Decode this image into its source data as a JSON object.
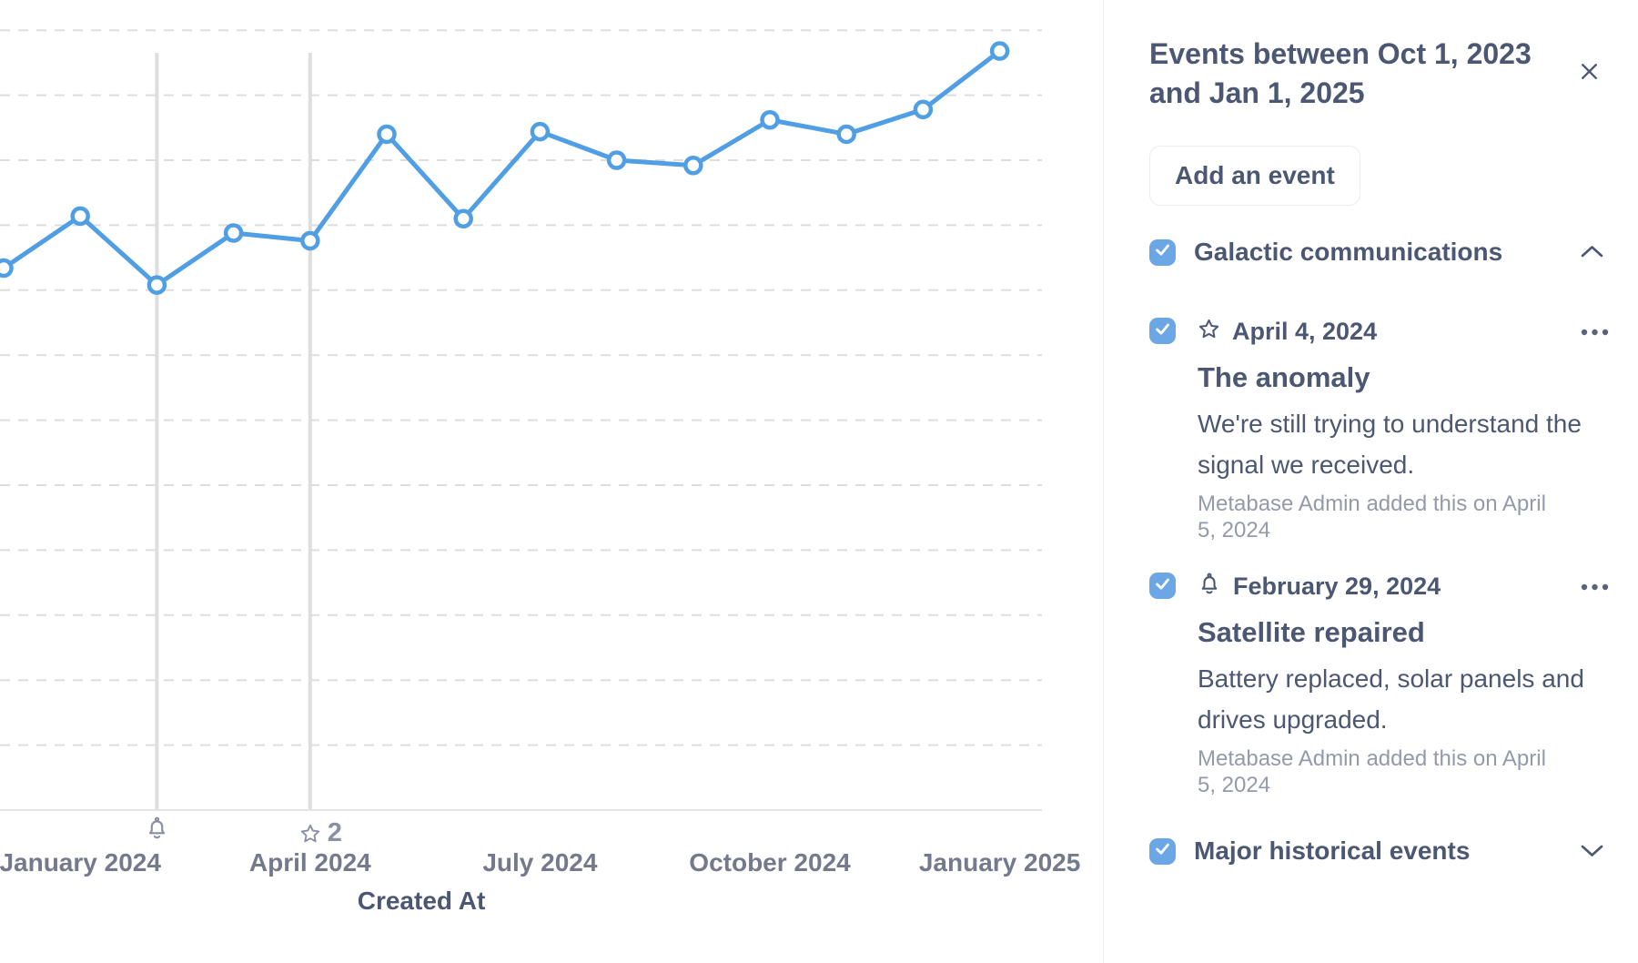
{
  "colors": {
    "accent_blue": "#509EE3",
    "checkbox_blue": "#6BA6E5",
    "text_dark": "#4C5773",
    "text_medium": "#74798C",
    "text_light": "#949AAB",
    "gridline": "#DDDDDD",
    "axis_line": "#E4E4E6",
    "event_line": "#DEDEDE",
    "axis_icon": "#8A90A2"
  },
  "chart_data": {
    "type": "line",
    "title": "",
    "x": [
      "December 2023",
      "January 2024",
      "February 2024",
      "March 2024",
      "April 2024",
      "May 2024",
      "June 2024",
      "July 2024",
      "August 2024",
      "September 2024",
      "October 2024",
      "November 2024",
      "December 2024",
      "January 2025"
    ],
    "values": [
      41.7,
      45.7,
      40.4,
      44.4,
      43.8,
      52.0,
      45.5,
      52.2,
      50.0,
      49.6,
      53.1,
      52.0,
      53.9,
      58.4
    ],
    "values_note": "y-axis labels are cropped out of the screenshot; values estimated in arbitrary units from gridlines (5 units per gridline interval, baseline 0 at axis)",
    "ylim": [
      0,
      62
    ],
    "gridline_step": 5,
    "grid": "horizontal dashed",
    "x_tick_labels": [
      "January 2024",
      "April 2024",
      "July 2024",
      "October 2024",
      "January 2025"
    ],
    "x_tick_month_indexes": [
      1,
      4,
      7,
      10,
      13
    ],
    "xlabel": "Created At",
    "legend": "none",
    "line_color": "#509EE3",
    "marker_style": "open circle, white fill",
    "axis_events": [
      {
        "icon": "bell",
        "month": "February 2024",
        "month_index": 2,
        "count": ""
      },
      {
        "icon": "star",
        "month": "April 2024",
        "month_index": 4,
        "count": "2"
      }
    ]
  },
  "sidebar": {
    "title": "Events between Oct 1, 2023 and Jan 1, 2025",
    "close_label": "close",
    "add_event_button": "Add an event",
    "groups": [
      {
        "label": "Galactic communications",
        "checked": true,
        "state": "expanded",
        "events": [
          {
            "icon": "star",
            "date": "April 4, 2024",
            "title": "The anomaly",
            "description": "We're still trying to understand the signal we received.",
            "added_by": "Metabase Admin added this on April 5, 2024",
            "checked": true,
            "menu": "…"
          },
          {
            "icon": "bell",
            "date": "February 29, 2024",
            "title": "Satellite repaired",
            "description": "Battery replaced, solar panels and drives upgraded.",
            "added_by": "Metabase Admin added this on April 5, 2024",
            "checked": true,
            "menu": "…"
          }
        ]
      },
      {
        "label": "Major historical events",
        "checked": true,
        "state": "collapsed",
        "events": []
      }
    ]
  }
}
